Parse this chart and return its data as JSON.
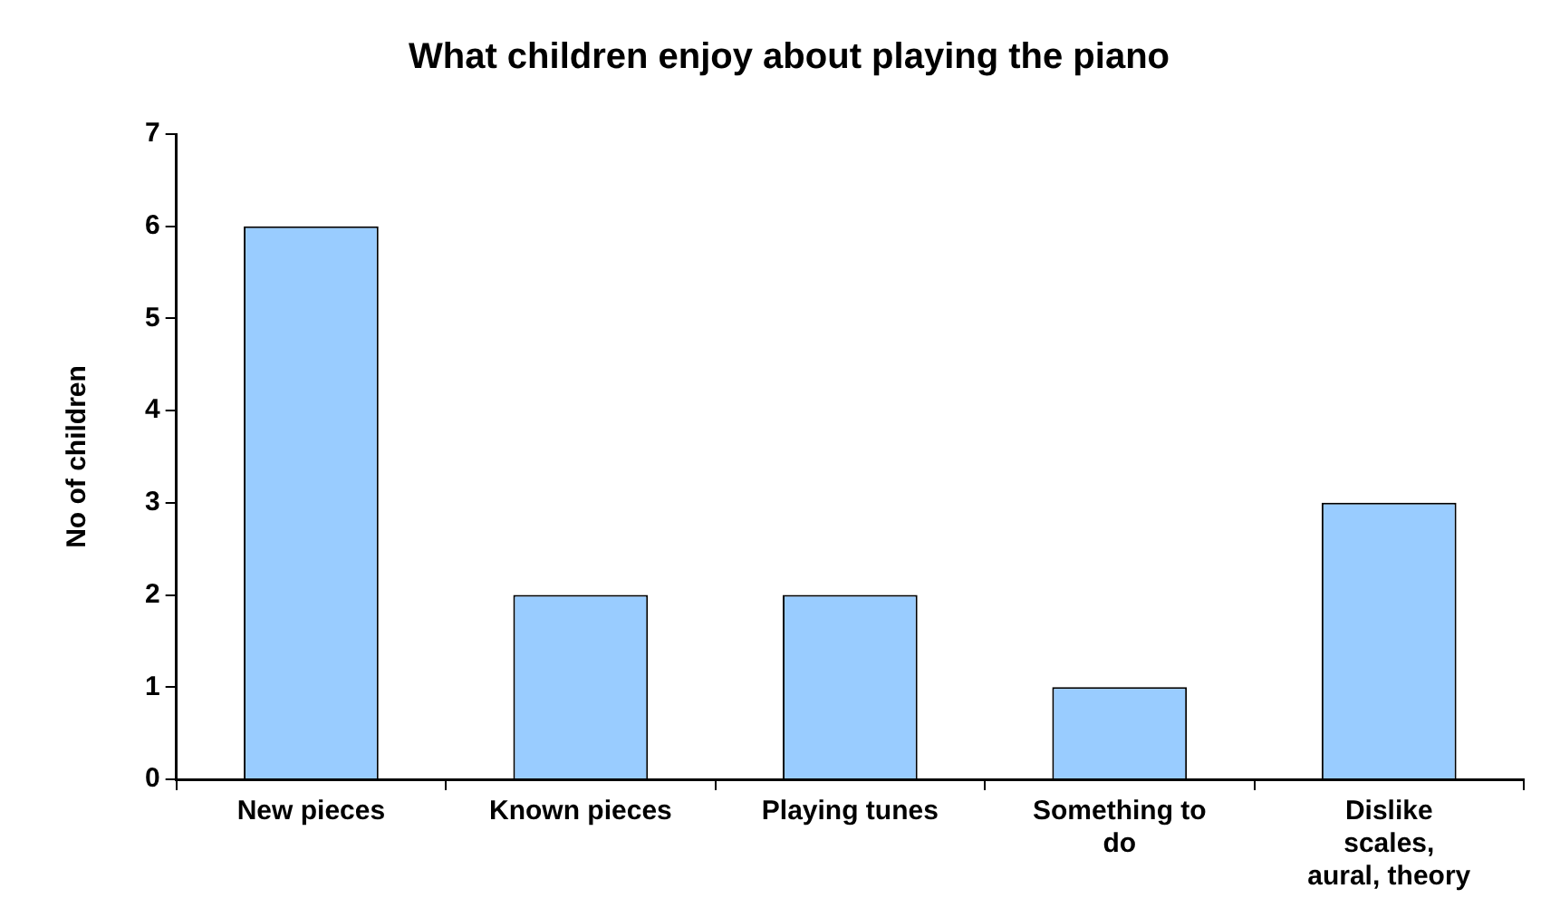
{
  "chart_data": {
    "type": "bar",
    "title": "What children enjoy about playing the piano",
    "ylabel": "No of children",
    "categories": [
      "New pieces",
      "Known pieces",
      "Playing tunes",
      "Something to do",
      "Dislike scales, aural, theory"
    ],
    "values": [
      6,
      2,
      2,
      1,
      3
    ],
    "color": "#99ccff",
    "ylim": [
      0,
      7
    ],
    "yticks": [
      0,
      1,
      2,
      3,
      4,
      5,
      6,
      7
    ],
    "grid": false,
    "legend": false
  }
}
